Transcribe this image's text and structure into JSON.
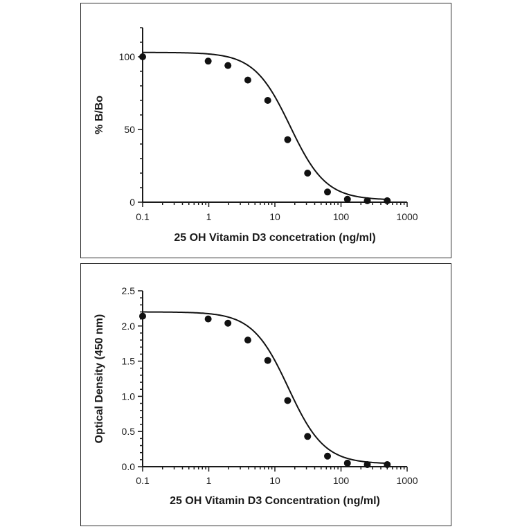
{
  "chart_data": [
    {
      "type": "scatter",
      "title": "",
      "xlabel": "25 OH Vitamin D3 concetration (ng/ml)",
      "ylabel": "% B/Bo",
      "xscale": "log",
      "xlim": [
        0.1,
        1000
      ],
      "ylim": [
        0,
        120
      ],
      "xticks": [
        "0.1",
        "1",
        "10",
        "100",
        "1000"
      ],
      "yticks": [
        "0",
        "50",
        "100"
      ],
      "grid": false,
      "series": [
        {
          "x": [
            0.1,
            0.98,
            1.95,
            3.9,
            7.8,
            15.6,
            31.25,
            62.5,
            125,
            250,
            500
          ],
          "y": [
            100,
            97,
            94,
            84,
            70,
            43,
            20,
            7,
            2,
            1,
            1
          ]
        }
      ],
      "fit": {
        "top": 103,
        "bottom": 1.5,
        "ec50": 17,
        "hill": 1.6
      }
    },
    {
      "type": "scatter",
      "title": "",
      "xlabel": "25 OH Vitamin D3 Concentration (ng/ml)",
      "ylabel": "Optical Density (450 nm)",
      "xscale": "log",
      "xlim": [
        0.1,
        1000
      ],
      "ylim": [
        0,
        2.5
      ],
      "xticks": [
        "0.1",
        "1",
        "10",
        "100",
        "1000"
      ],
      "yticks": [
        "0.0",
        "0.5",
        "1.0",
        "1.5",
        "2.0",
        "2.5"
      ],
      "grid": false,
      "series": [
        {
          "x": [
            0.1,
            0.98,
            1.95,
            3.9,
            7.8,
            15.6,
            31.25,
            62.5,
            125,
            250,
            500
          ],
          "y": [
            2.14,
            2.1,
            2.04,
            1.8,
            1.51,
            0.94,
            0.43,
            0.15,
            0.05,
            0.03,
            0.03
          ]
        }
      ],
      "fit": {
        "top": 2.2,
        "bottom": 0.04,
        "ec50": 16,
        "hill": 1.6
      }
    }
  ]
}
